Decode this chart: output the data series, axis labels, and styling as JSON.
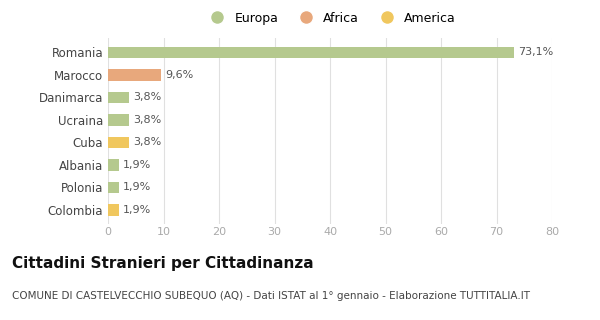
{
  "categories": [
    "Romania",
    "Marocco",
    "Danimarca",
    "Ucraina",
    "Cuba",
    "Albania",
    "Polonia",
    "Colombia"
  ],
  "values": [
    73.1,
    9.6,
    3.8,
    3.8,
    3.8,
    1.9,
    1.9,
    1.9
  ],
  "labels": [
    "73,1%",
    "9,6%",
    "3,8%",
    "3,8%",
    "3,8%",
    "1,9%",
    "1,9%",
    "1,9%"
  ],
  "bar_colors": [
    "#b5c98e",
    "#e8a87c",
    "#b5c98e",
    "#b5c98e",
    "#f0c75e",
    "#b5c98e",
    "#b5c98e",
    "#f0c75e"
  ],
  "legend_labels": [
    "Europa",
    "Africa",
    "America"
  ],
  "legend_colors": [
    "#b5c98e",
    "#e8a87c",
    "#f0c75e"
  ],
  "xlim": [
    0,
    80
  ],
  "xticks": [
    0,
    10,
    20,
    30,
    40,
    50,
    60,
    70,
    80
  ],
  "title": "Cittadini Stranieri per Cittadinanza",
  "subtitle": "COMUNE DI CASTELVECCHIO SUBEQUO (AQ) - Dati ISTAT al 1° gennaio - Elaborazione TUTTITALIA.IT",
  "background_color": "#ffffff",
  "grid_color": "#e0e0e0",
  "bar_height": 0.5,
  "label_fontsize": 8,
  "ytick_fontsize": 8.5,
  "xtick_fontsize": 8,
  "title_fontsize": 11,
  "subtitle_fontsize": 7.5
}
